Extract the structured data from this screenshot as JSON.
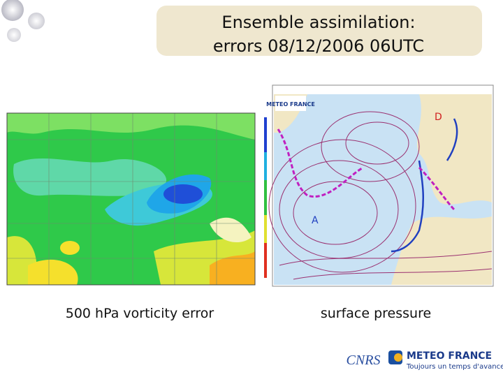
{
  "header": {
    "title_lines": [
      "Ensemble assimilation:",
      "errors 08/12/2006 06UTC"
    ]
  },
  "panels": [
    {
      "caption": "500 hPa vorticity error"
    },
    {
      "caption": "surface pressure",
      "logo": "METEO FRANCE",
      "labels": [
        "D",
        "A"
      ]
    }
  ],
  "footer": {
    "logo_left": "CNRS",
    "logo_right": "METEO FRANCE",
    "slogan": "Toujours un temps d'avance"
  }
}
